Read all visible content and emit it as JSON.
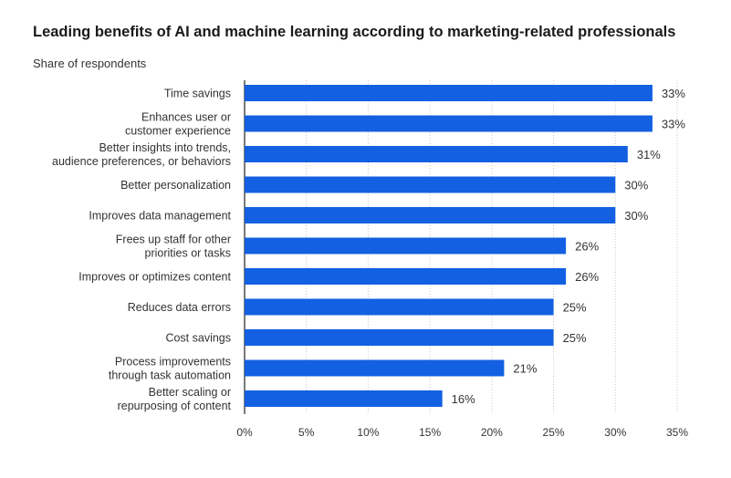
{
  "chart_data": {
    "type": "bar",
    "orientation": "horizontal",
    "title": "Leading benefits of AI and machine learning according to marketing-related professionals",
    "subtitle": "Share of respondents",
    "xlabel": "",
    "ylabel": "",
    "categories": [
      [
        "Time savings"
      ],
      [
        "Enhances user or",
        "customer experience"
      ],
      [
        "Better insights into trends,",
        "audience preferences, or behaviors"
      ],
      [
        "Better personalization"
      ],
      [
        "Improves data management"
      ],
      [
        "Frees up staff for other",
        "priorities or tasks"
      ],
      [
        "Improves or optimizes content"
      ],
      [
        "Reduces data errors"
      ],
      [
        "Cost savings"
      ],
      [
        "Process improvements",
        "through task automation"
      ],
      [
        "Better scaling or",
        "repurposing of content"
      ]
    ],
    "values": [
      33,
      33,
      31,
      30,
      30,
      26,
      26,
      25,
      25,
      21,
      16
    ],
    "value_labels": [
      "33%",
      "33%",
      "31%",
      "30%",
      "30%",
      "26%",
      "26%",
      "25%",
      "25%",
      "21%",
      "16%"
    ],
    "xlim": [
      0,
      35
    ],
    "xticks": [
      0,
      5,
      10,
      15,
      20,
      25,
      30,
      35
    ],
    "xtick_labels": [
      "0%",
      "5%",
      "10%",
      "15%",
      "20%",
      "25%",
      "30%",
      "35%"
    ],
    "grid": true,
    "bar_color": "#1360e2"
  }
}
